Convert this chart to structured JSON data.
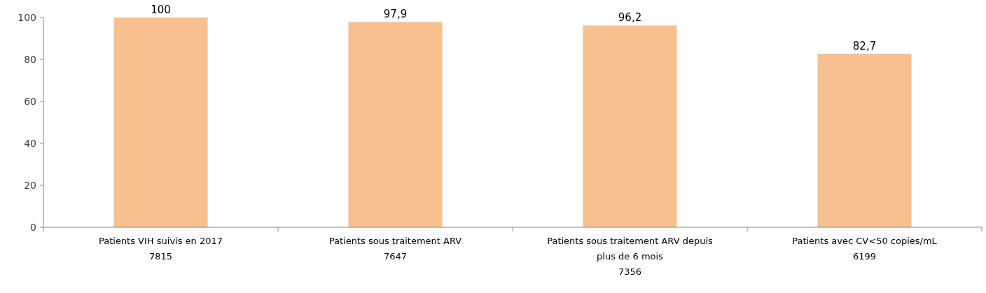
{
  "chart_data": {
    "type": "bar",
    "categories": [
      "Patients VIH suivis en 2017\n7815",
      "Patients sous traitement ARV\n7647",
      "Patients sous traitement ARV depuis\nplus de 6 mois\n7356",
      "Patients avec CV<50 copies/mL\n6199"
    ],
    "values": [
      100,
      97.9,
      96.2,
      82.7
    ],
    "value_labels": [
      "100",
      "97,9",
      "96,2",
      "82,7"
    ],
    "color": "#f8bf8f",
    "ylim": [
      0,
      100
    ],
    "yticks": [
      0,
      20,
      40,
      60,
      80,
      100
    ],
    "grid": false
  }
}
